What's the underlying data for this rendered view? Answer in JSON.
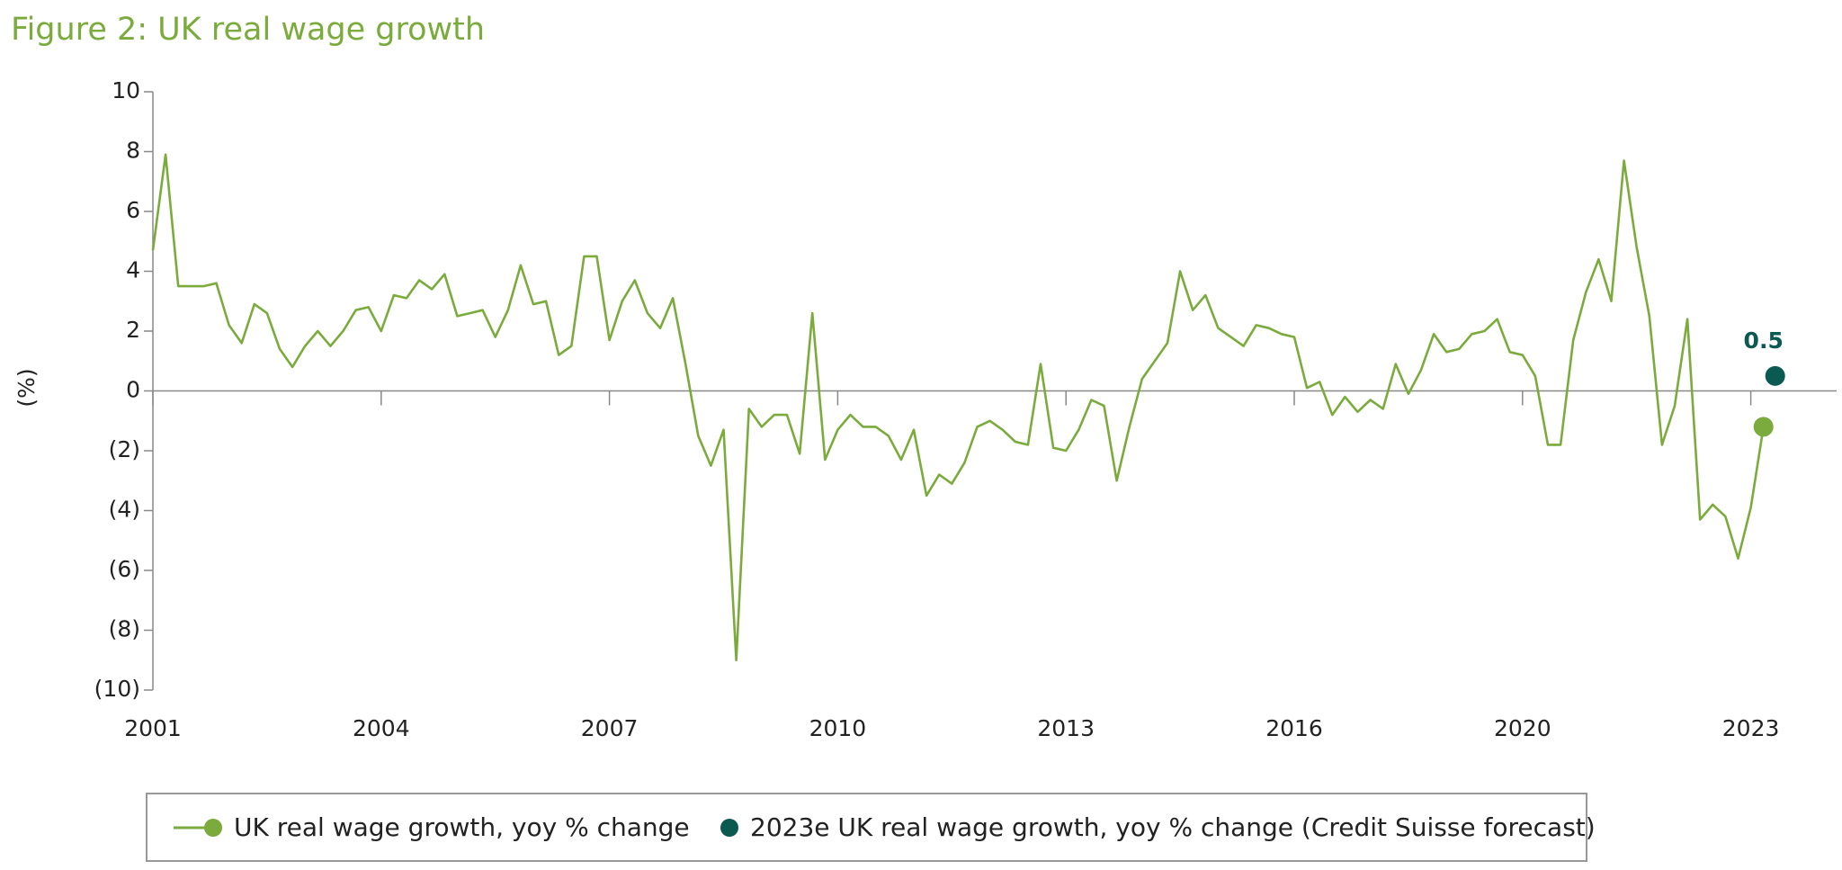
{
  "chart_data": {
    "type": "line",
    "title": "Figure 2: UK real wage growth",
    "y_label": "(%)",
    "categories": [
      "2001",
      null,
      null,
      null,
      null,
      null,
      null,
      null,
      null,
      null,
      null,
      null,
      null,
      null,
      null,
      null,
      null,
      null,
      "2004",
      null,
      null,
      null,
      null,
      null,
      null,
      null,
      null,
      null,
      null,
      null,
      null,
      null,
      null,
      null,
      null,
      null,
      "2007",
      null,
      null,
      null,
      null,
      null,
      null,
      null,
      null,
      null,
      null,
      null,
      null,
      null,
      null,
      null,
      null,
      null,
      "2010",
      null,
      null,
      null,
      null,
      null,
      null,
      null,
      null,
      null,
      null,
      null,
      null,
      null,
      null,
      null,
      null,
      null,
      "2013",
      null,
      null,
      null,
      null,
      null,
      null,
      null,
      null,
      null,
      null,
      null,
      null,
      null,
      null,
      null,
      null,
      null,
      "2016",
      null,
      null,
      null,
      null,
      null,
      null,
      null,
      null,
      null,
      null,
      null,
      null,
      null,
      null,
      null,
      null,
      null,
      "2020",
      null,
      null,
      null,
      null,
      null,
      null,
      null,
      null,
      null,
      null,
      null,
      null,
      null,
      null,
      null,
      null,
      null,
      "2023",
      null
    ],
    "series": [
      {
        "name": "UK real wage growth, yoy % change",
        "color": "#7aab3c",
        "values": [
          4.7,
          7.9,
          3.5,
          3.5,
          3.5,
          3.6,
          2.2,
          1.6,
          2.9,
          2.6,
          1.4,
          0.8,
          1.5,
          2.0,
          1.5,
          2.0,
          2.7,
          2.8,
          2.0,
          3.2,
          3.1,
          3.7,
          3.4,
          3.9,
          2.5,
          2.6,
          2.7,
          1.8,
          2.7,
          4.2,
          2.9,
          3.0,
          1.2,
          1.5,
          4.5,
          4.5,
          1.7,
          3.0,
          3.7,
          2.6,
          2.1,
          3.1,
          0.9,
          -1.5,
          -2.5,
          -1.3,
          -9.0,
          -0.6,
          -1.2,
          -0.8,
          -0.8,
          -2.1,
          2.6,
          -2.3,
          -1.3,
          -0.8,
          -1.2,
          -1.2,
          -1.5,
          -2.3,
          -1.3,
          -3.5,
          -2.8,
          -3.1,
          -2.4,
          -1.2,
          -1.0,
          -1.3,
          -1.7,
          -1.8,
          0.9,
          -1.9,
          -2.0,
          -1.3,
          -0.3,
          -0.5,
          -3.0,
          -1.2,
          0.4,
          1.0,
          1.6,
          4.0,
          2.7,
          3.2,
          2.1,
          1.8,
          1.5,
          2.2,
          2.1,
          1.9,
          1.8,
          0.1,
          0.3,
          -0.8,
          -0.2,
          -0.7,
          -0.3,
          -0.6,
          0.9,
          -0.1,
          0.7,
          1.9,
          1.3,
          1.4,
          1.9,
          2.0,
          2.4,
          1.3,
          1.2,
          0.5,
          -1.8,
          -1.8,
          1.7,
          3.3,
          4.4,
          3.0,
          7.7,
          4.8,
          2.5,
          -1.8,
          -0.5,
          2.4,
          -4.3,
          -3.8,
          -4.2,
          -5.6,
          -3.9,
          -1.2
        ]
      },
      {
        "name": "2023e UK real wage growth, yoy % change (Credit Suisse forecast)",
        "color": "#0b5a52",
        "values": [
          null,
          null,
          null,
          null,
          null,
          null,
          null,
          null,
          null,
          null,
          null,
          null,
          null,
          null,
          null,
          null,
          null,
          null,
          null,
          null,
          null,
          null,
          null,
          null,
          null,
          null,
          null,
          null,
          null,
          null,
          null,
          null,
          null,
          null,
          null,
          null,
          null,
          null,
          null,
          null,
          null,
          null,
          null,
          null,
          null,
          null,
          null,
          null,
          null,
          null,
          null,
          null,
          null,
          null,
          null,
          null,
          null,
          null,
          null,
          null,
          null,
          null,
          null,
          null,
          null,
          null,
          null,
          null,
          null,
          null,
          null,
          null,
          null,
          null,
          null,
          null,
          null,
          null,
          null,
          null,
          null,
          null,
          null,
          null,
          null,
          null,
          null,
          null,
          null,
          null,
          null,
          null,
          null,
          null,
          null,
          null,
          null,
          null,
          null,
          null,
          null,
          null,
          null,
          null,
          null,
          null,
          null,
          null,
          null,
          null,
          null,
          null,
          null,
          null,
          null,
          null,
          null,
          null,
          null,
          null,
          null,
          null,
          null,
          null,
          null,
          null,
          null,
          0.5
        ]
      }
    ],
    "ylim": [
      -10,
      10
    ],
    "yticks": [
      {
        "value": -10,
        "label": "(10)"
      },
      {
        "value": -8,
        "label": "(8)"
      },
      {
        "value": -6,
        "label": "(6)"
      },
      {
        "value": -4,
        "label": "(4)"
      },
      {
        "value": -2,
        "label": "(2)"
      },
      0,
      2,
      4,
      6,
      8,
      10
    ]
  }
}
